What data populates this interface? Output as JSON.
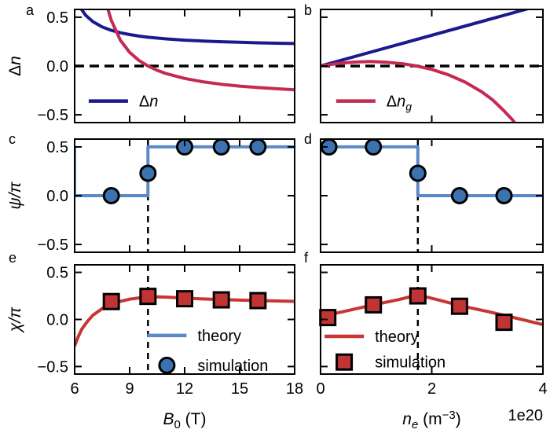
{
  "figure": {
    "background": "#ffffff",
    "panel_letters": [
      "a",
      "b",
      "c",
      "d",
      "e",
      "f"
    ]
  },
  "colors": {
    "navy": "#1a1a8e",
    "crimson": "#c42a52",
    "steel_blue": "#5b8ac6",
    "marker_blue": "#3c72b0",
    "red": "#c93434",
    "marker_red": "#c23334",
    "axis": "#000000",
    "dash": "#000000",
    "text": "#000000"
  },
  "chart_data": {
    "type": "line",
    "layout_note": "3x2 grid of panels; left column x-axis B0 (T) 6-18, right column x-axis ne (m^-3) 0-4e20; all y axes -0.5..0.5; ticks point inward on all four sides; dashed black reference lines",
    "panels": [
      {
        "id": "a",
        "letter": "a",
        "col": 0,
        "row": 0,
        "xlim": [
          6,
          18
        ],
        "ylim": [
          -0.58,
          0.58
        ],
        "xticks": [
          6,
          9,
          12,
          15,
          18
        ],
        "yticks": [
          0.5,
          0,
          -0.5
        ],
        "xticklabels": null,
        "yticklabels": [
          "0.5",
          "0.0",
          "−0.5"
        ],
        "ylabel": [
          [
            "Δ",
            ""
          ],
          [
            "n",
            "i"
          ]
        ],
        "xlabel": null,
        "refline": {
          "orient": "h",
          "value": 0
        },
        "series": [
          {
            "name": "delta-n-line",
            "type": "line",
            "color": "navy",
            "points": [
              [
                6,
                0.72
              ],
              [
                6.3,
                0.6
              ],
              [
                6.6,
                0.52
              ],
              [
                7,
                0.454
              ],
              [
                7.5,
                0.401
              ],
              [
                8,
                0.366
              ],
              [
                8.5,
                0.341
              ],
              [
                9,
                0.322
              ],
              [
                9.5,
                0.307
              ],
              [
                10,
                0.295
              ],
              [
                11,
                0.278
              ],
              [
                12,
                0.265
              ],
              [
                13,
                0.256
              ],
              [
                14,
                0.249
              ],
              [
                15,
                0.243
              ],
              [
                16,
                0.238
              ],
              [
                17,
                0.234
              ],
              [
                18,
                0.23
              ]
            ]
          },
          {
            "name": "delta-ng-line",
            "type": "line",
            "color": "crimson",
            "points": [
              [
                7.2,
                1.4
              ],
              [
                7.35,
                1.09
              ],
              [
                7.5,
                0.875
              ],
              [
                7.8,
                0.592
              ],
              [
                8,
                0.467
              ],
              [
                8.5,
                0.263
              ],
              [
                9,
                0.14
              ],
              [
                9.5,
                0.058
              ],
              [
                10,
                0
              ],
              [
                10.5,
                -0.044
              ],
              [
                11,
                -0.078
              ],
              [
                12,
                -0.127
              ],
              [
                13,
                -0.162
              ],
              [
                14,
                -0.187
              ],
              [
                15,
                -0.206
              ],
              [
                16,
                -0.221
              ],
              [
                17,
                -0.233
              ],
              [
                18,
                -0.243
              ]
            ]
          }
        ],
        "legend": [
          {
            "kind": "line",
            "color": "navy",
            "label": [
              [
                "Δ",
                ""
              ],
              [
                "n",
                "i"
              ]
            ],
            "fx": 0.064,
            "fy": 0.81
          }
        ]
      },
      {
        "id": "b",
        "letter": "b",
        "col": 1,
        "row": 0,
        "xlim": [
          0,
          4
        ],
        "ylim": [
          -0.58,
          0.58
        ],
        "xticks": [
          0,
          2,
          4
        ],
        "yticks": [
          0.5,
          0,
          -0.5
        ],
        "xticklabels": null,
        "yticklabels": null,
        "ylabel": null,
        "xlabel": null,
        "refline": {
          "orient": "h",
          "value": 0
        },
        "series": [
          {
            "name": "delta-n-line",
            "type": "line",
            "color": "navy",
            "points": [
              [
                0,
                0
              ],
              [
                4,
                0.63
              ]
            ]
          },
          {
            "name": "delta-ng-line",
            "type": "line",
            "color": "crimson",
            "points": [
              [
                0,
                0
              ],
              [
                0.3,
                0.025
              ],
              [
                0.6,
                0.04
              ],
              [
                0.9,
                0.046
              ],
              [
                1.2,
                0.038
              ],
              [
                1.5,
                0.021
              ],
              [
                1.73,
                0
              ],
              [
                2.0,
                -0.035
              ],
              [
                2.3,
                -0.09
              ],
              [
                2.6,
                -0.165
              ],
              [
                2.9,
                -0.265
              ],
              [
                3.1,
                -0.35
              ],
              [
                3.3,
                -0.46
              ],
              [
                3.45,
                -0.55
              ],
              [
                3.6,
                -0.66
              ]
            ]
          }
        ],
        "legend": [
          {
            "kind": "line",
            "color": "crimson",
            "label": [
              [
                "Δ",
                ""
              ],
              [
                "n",
                "i"
              ],
              [
                "g",
                "isub"
              ]
            ],
            "fx": 0.07,
            "fy": 0.81
          }
        ]
      },
      {
        "id": "c",
        "letter": "c",
        "col": 0,
        "row": 1,
        "xlim": [
          6,
          18
        ],
        "ylim": [
          -0.58,
          0.58
        ],
        "xticks": [
          6,
          9,
          12,
          15,
          18
        ],
        "yticks": [
          0.5,
          0,
          -0.5
        ],
        "xticklabels": null,
        "yticklabels": [
          "0.5",
          "0.0",
          "−0.5"
        ],
        "ylabel": [
          [
            "ψ/π",
            "i"
          ]
        ],
        "xlabel": null,
        "refline": {
          "orient": "v",
          "value": 10
        },
        "series": [
          {
            "name": "theory-step",
            "type": "line",
            "color": "steel_blue",
            "points": [
              [
                6,
                0.5
              ],
              [
                6,
                0
              ],
              [
                10,
                0
              ],
              [
                10,
                0.5
              ],
              [
                18,
                0.5
              ]
            ]
          },
          {
            "name": "simulation-circles",
            "type": "scatter",
            "marker": "circle",
            "color": "marker_blue",
            "points": [
              [
                8,
                0
              ],
              [
                10,
                0.23
              ],
              [
                12,
                0.5
              ],
              [
                14,
                0.5
              ],
              [
                16,
                0.5
              ]
            ]
          }
        ],
        "legend": []
      },
      {
        "id": "d",
        "letter": "d",
        "col": 1,
        "row": 1,
        "xlim": [
          0,
          4
        ],
        "ylim": [
          -0.58,
          0.58
        ],
        "xticks": [
          0,
          2,
          4
        ],
        "yticks": [
          0.5,
          0,
          -0.5
        ],
        "xticklabels": null,
        "yticklabels": null,
        "ylabel": null,
        "xlabel": null,
        "refline": {
          "orient": "v",
          "value": 1.75
        },
        "series": [
          {
            "name": "theory-step",
            "type": "line",
            "color": "steel_blue",
            "points": [
              [
                0,
                0.5
              ],
              [
                1.75,
                0.5
              ],
              [
                1.75,
                0
              ],
              [
                4,
                0
              ]
            ]
          },
          {
            "name": "simulation-circles",
            "type": "scatter",
            "marker": "circle",
            "color": "marker_blue",
            "points": [
              [
                0.15,
                0.5
              ],
              [
                0.95,
                0.5
              ],
              [
                1.75,
                0.23
              ],
              [
                2.5,
                0
              ],
              [
                3.3,
                0
              ]
            ]
          }
        ],
        "legend": []
      },
      {
        "id": "e",
        "letter": "e",
        "col": 0,
        "row": 2,
        "xlim": [
          6,
          18
        ],
        "ylim": [
          -0.58,
          0.58
        ],
        "xticks": [
          6,
          9,
          12,
          15,
          18
        ],
        "yticks": [
          0.5,
          0,
          -0.5
        ],
        "xticklabels": [
          "6",
          "9",
          "12",
          "15",
          "18"
        ],
        "yticklabels": [
          "0.5",
          "0.0",
          "−0.5"
        ],
        "ylabel": [
          [
            "χ/π",
            "i"
          ]
        ],
        "xlabel": [
          [
            "B",
            "i"
          ],
          [
            "0",
            "sub"
          ],
          [
            " (T)",
            ""
          ]
        ],
        "refline": {
          "orient": "v",
          "value": 10
        },
        "series": [
          {
            "name": "theory-curve",
            "type": "line",
            "color": "red",
            "points": [
              [
                6,
                -0.28
              ],
              [
                6.2,
                -0.18
              ],
              [
                6.4,
                -0.1
              ],
              [
                6.7,
                -0.02
              ],
              [
                7,
                0.045
              ],
              [
                7.5,
                0.115
              ],
              [
                8,
                0.16
              ],
              [
                8.5,
                0.193
              ],
              [
                9,
                0.215
              ],
              [
                9.5,
                0.229
              ],
              [
                10,
                0.238
              ],
              [
                10.5,
                0.24
              ],
              [
                11,
                0.237
              ],
              [
                12,
                0.227
              ],
              [
                13,
                0.218
              ],
              [
                14,
                0.211
              ],
              [
                15,
                0.205
              ],
              [
                16,
                0.2
              ],
              [
                17,
                0.196
              ],
              [
                18,
                0.192
              ]
            ]
          },
          {
            "name": "simulation-squares",
            "type": "scatter",
            "marker": "square",
            "color": "marker_red",
            "points": [
              [
                8,
                0.19
              ],
              [
                10,
                0.245
              ],
              [
                12,
                0.22
              ],
              [
                14,
                0.208
              ],
              [
                16,
                0.2
              ]
            ]
          }
        ],
        "legend": [
          {
            "kind": "line",
            "color": "steel_blue",
            "label": [
              [
                "theory",
                ""
              ]
            ],
            "fx": 0.33,
            "fy": 0.647
          },
          {
            "kind": "circle",
            "color": "marker_blue",
            "label": [
              [
                "simulation",
                ""
              ]
            ],
            "fx": 0.33,
            "fy": 0.92
          }
        ]
      },
      {
        "id": "f",
        "letter": "f",
        "col": 1,
        "row": 2,
        "xlim": [
          0,
          4
        ],
        "ylim": [
          -0.58,
          0.58
        ],
        "xticks": [
          0,
          2,
          4
        ],
        "yticks": [
          0.5,
          0,
          -0.5
        ],
        "xticklabels": [
          "0",
          "2",
          "4"
        ],
        "yticklabels": null,
        "ylabel": null,
        "xlabel": [
          [
            "n",
            "i"
          ],
          [
            "e",
            "isub"
          ],
          [
            " (m",
            ""
          ],
          [
            "−3",
            "sup"
          ],
          [
            ")",
            ""
          ]
        ],
        "offset_label": "1e20",
        "refline": {
          "orient": "v",
          "value": 1.75
        },
        "series": [
          {
            "name": "theory-curve",
            "type": "line",
            "color": "red",
            "points": [
              [
                0,
                0.03
              ],
              [
                0.5,
                0.095
              ],
              [
                0.95,
                0.155
              ],
              [
                1.4,
                0.21
              ],
              [
                1.75,
                0.26
              ],
              [
                2.1,
                0.21
              ],
              [
                2.5,
                0.148
              ],
              [
                3,
                0.085
              ],
              [
                3.5,
                0.017
              ],
              [
                4,
                -0.055
              ]
            ]
          },
          {
            "name": "simulation-squares",
            "type": "scatter",
            "marker": "square",
            "color": "marker_red",
            "points": [
              [
                0.13,
                0.02
              ],
              [
                0.95,
                0.155
              ],
              [
                1.75,
                0.25
              ],
              [
                2.5,
                0.14
              ],
              [
                3.3,
                -0.03
              ]
            ]
          }
        ],
        "legend": [
          {
            "kind": "line",
            "color": "red",
            "label": [
              [
                "theory",
                ""
              ]
            ],
            "fx": 0.018,
            "fy": 0.655
          },
          {
            "kind": "square",
            "color": "marker_red",
            "label": [
              [
                "simulation",
                ""
              ]
            ],
            "fx": 0.018,
            "fy": 0.89
          }
        ]
      }
    ]
  }
}
